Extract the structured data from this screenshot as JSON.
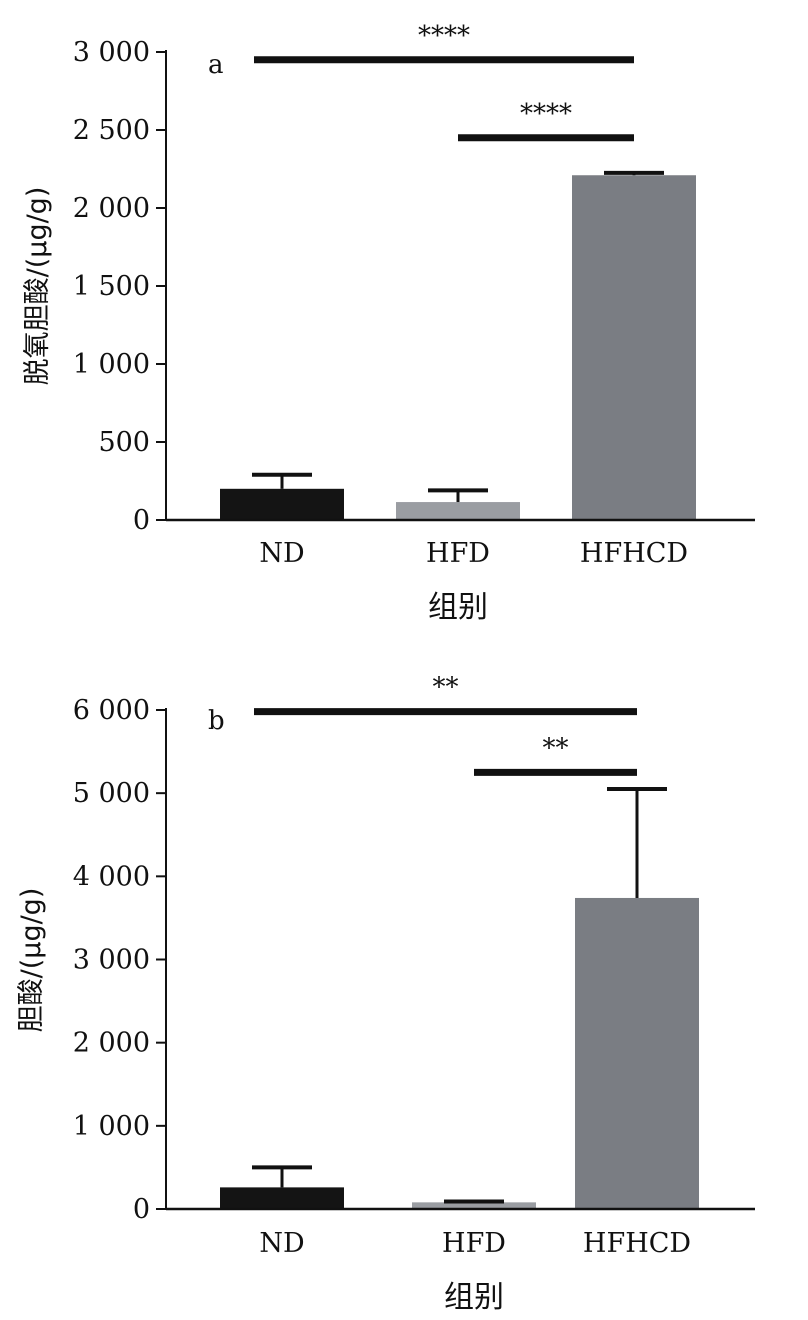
{
  "chart_data": [
    {
      "type": "bar",
      "panel_label": "a",
      "categories": [
        "ND",
        "HFD",
        "HFHCD"
      ],
      "values": [
        200,
        115,
        2210
      ],
      "errors": [
        90,
        75,
        15
      ],
      "colors": [
        "#141414",
        "#9a9da2",
        "#7a7d83"
      ],
      "ylabel": "脱氧胆酸/(μg/g)",
      "xlabel": "组别",
      "ylim": [
        0,
        3000
      ],
      "yticks": [
        0,
        500,
        1000,
        1500,
        2000,
        2500,
        3000
      ],
      "ytick_labels": [
        "0",
        "500",
        "1 000",
        "1 500",
        "2 000",
        "2 500",
        "3 000"
      ],
      "significance": [
        {
          "from": "ND",
          "to": "HFHCD",
          "level": 2950,
          "label": "****"
        },
        {
          "from": "HFD",
          "to": "HFHCD",
          "level": 2450,
          "label": "****"
        }
      ]
    },
    {
      "type": "bar",
      "panel_label": "b",
      "categories": [
        "ND",
        "HFD",
        "HFHCD"
      ],
      "values": [
        260,
        80,
        3740
      ],
      "errors": [
        240,
        10,
        1310
      ],
      "colors": [
        "#141414",
        "#9a9da2",
        "#7a7d83"
      ],
      "ylabel": "胆酸/(μg/g)",
      "xlabel": "组别",
      "ylim": [
        0,
        6000
      ],
      "yticks": [
        0,
        1000,
        2000,
        3000,
        4000,
        5000,
        6000
      ],
      "ytick_labels": [
        "0",
        "1 000",
        "2 000",
        "3 000",
        "4 000",
        "5 000",
        "6 000"
      ],
      "significance": [
        {
          "from": "ND",
          "to": "HFHCD",
          "level": 5980,
          "label": "**"
        },
        {
          "from": "HFD",
          "to": "HFHCD",
          "level": 5250,
          "label": "**"
        }
      ]
    }
  ]
}
